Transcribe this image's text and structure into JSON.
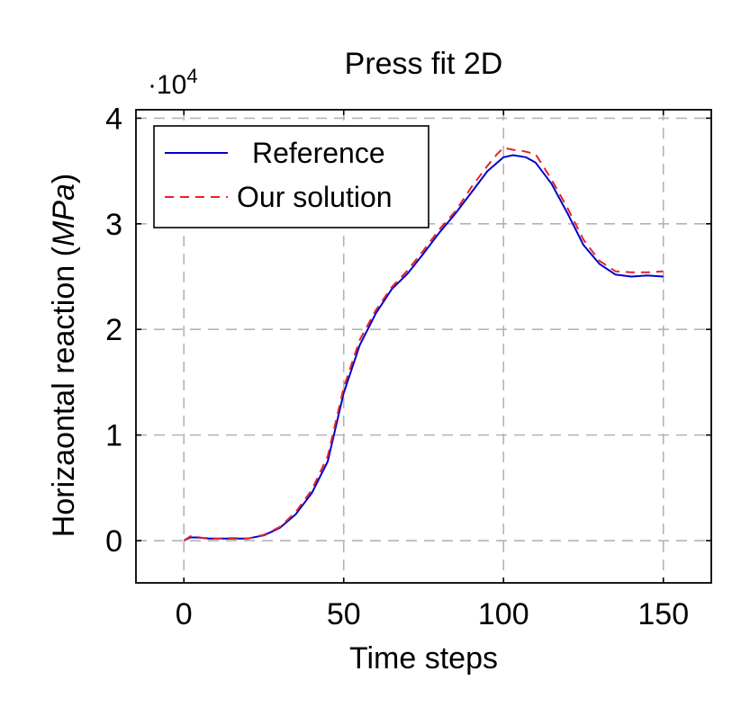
{
  "chart_data": {
    "type": "line",
    "title": "Press fit 2D",
    "xlabel": "Time steps",
    "ylabel_prefix": "Horizaontal reaction (",
    "ylabel_unit": "MPa",
    "ylabel_suffix": ")",
    "y_multiplier_base": "·10",
    "y_multiplier_exp": "4",
    "xlim": [
      -15,
      165
    ],
    "ylim": [
      -0.4,
      4.08
    ],
    "xticks": [
      0,
      50,
      100,
      150
    ],
    "xtick_labels": [
      "0",
      "50",
      "100",
      "150"
    ],
    "yticks": [
      0,
      1,
      2,
      3,
      4
    ],
    "ytick_labels": [
      "0",
      "1",
      "2",
      "3",
      "4"
    ],
    "grid": true,
    "legend_position": "top-left",
    "series": [
      {
        "name": "Reference",
        "color": "#0000cc",
        "style": "solid",
        "x": [
          0,
          2,
          4,
          6,
          8,
          10,
          15,
          20,
          25,
          30,
          35,
          40,
          45,
          50,
          55,
          60,
          65,
          70,
          75,
          80,
          85,
          90,
          95,
          100,
          103,
          107,
          110,
          115,
          120,
          125,
          130,
          135,
          140,
          145,
          150
        ],
        "y": [
          0.0,
          0.03,
          0.03,
          0.025,
          0.02,
          0.02,
          0.02,
          0.02,
          0.05,
          0.12,
          0.25,
          0.45,
          0.75,
          1.4,
          1.85,
          2.15,
          2.38,
          2.53,
          2.72,
          2.92,
          3.1,
          3.3,
          3.5,
          3.63,
          3.65,
          3.63,
          3.58,
          3.38,
          3.1,
          2.8,
          2.62,
          2.52,
          2.5,
          2.51,
          2.5
        ]
      },
      {
        "name": "Our solution",
        "color": "#e8202a",
        "style": "dashed",
        "x": [
          0,
          2,
          4,
          6,
          8,
          10,
          15,
          20,
          25,
          30,
          35,
          40,
          45,
          50,
          55,
          60,
          65,
          70,
          75,
          80,
          85,
          90,
          95,
          98,
          100,
          103,
          106,
          110,
          115,
          120,
          125,
          130,
          135,
          140,
          145,
          150
        ],
        "y": [
          0.0,
          0.04,
          0.035,
          0.025,
          0.025,
          0.02,
          0.025,
          0.02,
          0.055,
          0.13,
          0.27,
          0.48,
          0.8,
          1.45,
          1.9,
          2.18,
          2.4,
          2.56,
          2.75,
          2.95,
          3.12,
          3.35,
          3.55,
          3.66,
          3.72,
          3.7,
          3.69,
          3.66,
          3.42,
          3.15,
          2.85,
          2.65,
          2.55,
          2.54,
          2.54,
          2.55
        ]
      }
    ]
  }
}
